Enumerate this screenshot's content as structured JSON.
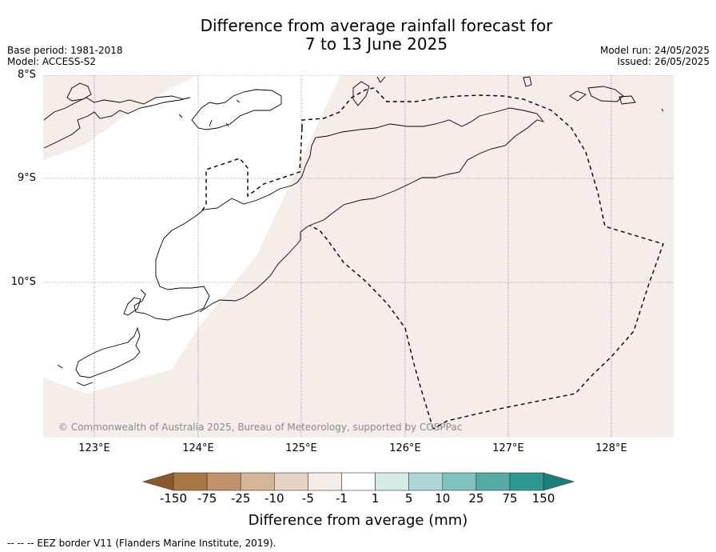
{
  "title_line1": "Difference from average rainfall forecast for",
  "title_line2": "7 to 13 June 2025",
  "base_period": "Base period: 1981-2018",
  "model": "Model: ACCESS-S2",
  "model_run": "Model run: 24/05/2025",
  "issued": "Issued: 26/05/2025",
  "lat_labels": [
    "8°S",
    "9°S",
    "10°S"
  ],
  "lon_labels": [
    "123°E",
    "124°E",
    "125°E",
    "126°E",
    "127°E",
    "128°E"
  ],
  "copyright": "© Commonwealth of Australia 2025, Bureau of Meteorology, supported by COSPPac",
  "colorbar": {
    "ticks": [
      "-150",
      "-75",
      "-25",
      "-10",
      "-5",
      "-1",
      "1",
      "5",
      "10",
      "25",
      "75",
      "150"
    ],
    "colors": [
      "#8c5a2a",
      "#a97744",
      "#c2926b",
      "#d6b496",
      "#e6d3c3",
      "#f4ede8",
      "#ffffff",
      "#d5ebe9",
      "#acd7d4",
      "#80c2be",
      "#55aaa5",
      "#2b9893",
      "#1a7f7a"
    ],
    "label": "Difference from average (mm)"
  },
  "map_colors": {
    "land_fill": "#f4ede8",
    "sea_fill": "#ffffff"
  },
  "footer": "--  --  -- EEZ border V11 (Flanders Marine Institute, 2019)."
}
